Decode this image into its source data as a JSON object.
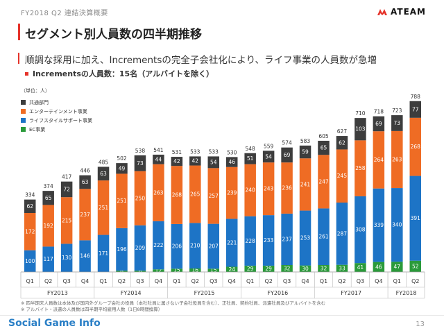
{
  "header": {
    "section": "FY2018 Q2 連結決算概要",
    "title": "セグメント別人員数の四半期推移",
    "logo_text": "ATEAM"
  },
  "subtitle": "順調な採用に加え、Incrementsの完全子会社化により、ライフ事業の人員数が急増",
  "bullet": "Incrementsの人員数：15名（アルバイトを除く）",
  "colors": {
    "common": "#3d3d3d",
    "entertainment": "#ef6c24",
    "lifestyle": "#1d74c6",
    "ec": "#2a9a3a",
    "accent": "#e5332a"
  },
  "chart_data": {
    "type": "bar",
    "stacked": true,
    "unit_label": "（単位：人）",
    "categories": [
      "Q1",
      "Q2",
      "Q3",
      "Q4",
      "Q1",
      "Q2",
      "Q3",
      "Q4",
      "Q1",
      "Q2",
      "Q3",
      "Q4",
      "Q1",
      "Q2",
      "Q3",
      "Q4",
      "Q1",
      "Q2",
      "Q3",
      "Q4",
      "Q1",
      "Q2"
    ],
    "fiscal_years": [
      {
        "label": "FY2013",
        "span": 4
      },
      {
        "label": "FY2014",
        "span": 4
      },
      {
        "label": "FY2015",
        "span": 4
      },
      {
        "label": "FY2016",
        "span": 4
      },
      {
        "label": "FY2017",
        "span": 4
      },
      {
        "label": "FY2018",
        "span": 2
      }
    ],
    "series": [
      {
        "name": "EC事業",
        "key": "ec",
        "values": [
          0,
          0,
          0,
          0,
          0,
          6,
          6,
          12,
          15,
          16,
          15,
          24,
          29,
          29,
          32,
          30,
          32,
          33,
          41,
          46,
          47,
          52
        ]
      },
      {
        "name": "ライフスタイルサポート事業",
        "key": "lifestyle",
        "values": [
          100,
          117,
          130,
          146,
          171,
          196,
          209,
          222,
          206,
          210,
          207,
          221,
          228,
          233,
          237,
          253,
          261,
          287,
          308,
          339,
          340,
          391
        ]
      },
      {
        "name": "エンターテインメント事業",
        "key": "entertainment",
        "values": [
          172,
          192,
          215,
          237,
          251,
          251,
          250,
          263,
          268,
          265,
          257,
          239,
          240,
          243,
          236,
          241,
          247,
          245,
          258,
          264,
          263,
          268
        ]
      },
      {
        "name": "共通部門",
        "key": "common",
        "values": [
          62,
          65,
          72,
          63,
          63,
          49,
          73,
          44,
          42,
          42,
          54,
          46,
          51,
          54,
          69,
          59,
          65,
          62,
          103,
          69,
          73,
          77
        ]
      }
    ],
    "totals": [
      334,
      374,
      417,
      446,
      485,
      502,
      538,
      541,
      531,
      533,
      533,
      530,
      548,
      559,
      574,
      583,
      605,
      627,
      710,
      718,
      723,
      788
    ],
    "ylim": [
      0,
      800
    ]
  },
  "legend": [
    {
      "label": "共通部門",
      "key": "common"
    },
    {
      "label": "エンターテインメント事業",
      "key": "entertainment"
    },
    {
      "label": "ライフスタイルサポート事業",
      "key": "lifestyle"
    },
    {
      "label": "EC事業",
      "key": "ec"
    }
  ],
  "notes": [
    "※ 四半期末人員数は本体及び国内外グループ会社の役員（本社社員に属さない子会社役員を含む）、正社員、契約社員、派遣社員及びアルバイトを含む",
    "※ アルバイト・派遣の人員数は四半期平均雇用人数（1日8時間換算）"
  ],
  "footer": {
    "brand": "Social Game Info",
    "page": "13"
  }
}
